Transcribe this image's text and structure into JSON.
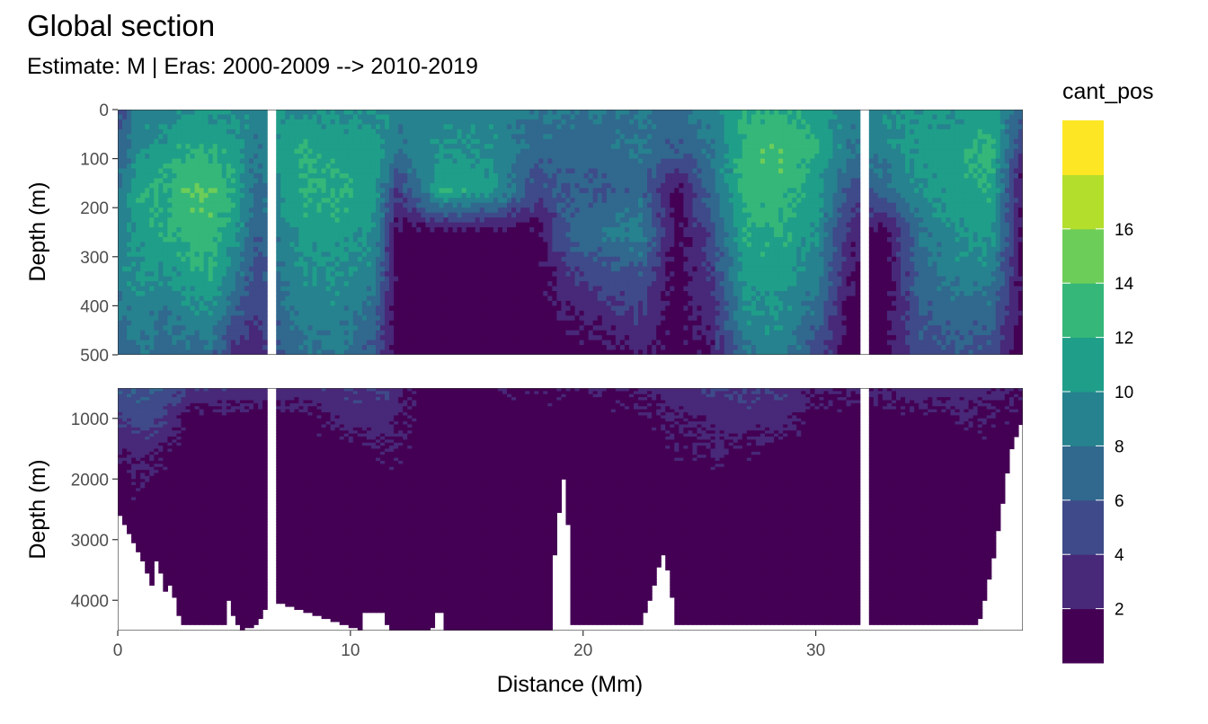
{
  "chart_data": {
    "type": "heatmap",
    "title": "Global section",
    "subtitle": "Estimate: M  | Eras: 2000-2009 --> 2010-2019",
    "xlabel": "Distance (Mm)",
    "ylabel": "Depth (m)",
    "legend_title": "cant_pos",
    "legend_placement": "right",
    "x_ticks": [
      "0",
      "10",
      "20",
      "30"
    ],
    "xlim": [
      0,
      38.9
    ],
    "x_gaps": [
      6.6,
      32.1
    ],
    "panels": [
      {
        "name": "upper",
        "ylim": [
          0,
          500
        ],
        "y_ticks": [
          "0",
          "100",
          "200",
          "300",
          "400",
          "500"
        ]
      },
      {
        "name": "lower",
        "ylim": [
          500,
          4500
        ],
        "y_ticks": [
          "1000",
          "2000",
          "3000",
          "4000"
        ]
      }
    ],
    "color_levels": [
      {
        "range": "0-2",
        "color": "#440154"
      },
      {
        "range": "2-4",
        "color": "#482878"
      },
      {
        "range": "4-6",
        "color": "#3E4A89"
      },
      {
        "range": "6-8",
        "color": "#31688E"
      },
      {
        "range": "8-10",
        "color": "#26828E"
      },
      {
        "range": "10-12",
        "color": "#1F9E89"
      },
      {
        "range": "12-14",
        "color": "#35B779"
      },
      {
        "range": "14-16",
        "color": "#6DCD59"
      },
      {
        "range": "16-18",
        "color": "#B4DE2C"
      },
      {
        "range": "18-20",
        "color": "#FDE725"
      }
    ],
    "legend_labels": [
      "2",
      "4",
      "6",
      "8",
      "10",
      "12",
      "14",
      "16"
    ],
    "upper_profiles": [
      {
        "x": 0.0,
        "d": [
          5,
          6,
          8,
          9,
          9,
          8,
          6
        ]
      },
      {
        "x": 1.0,
        "d": [
          9,
          10,
          12,
          11,
          10,
          9,
          8
        ]
      },
      {
        "x": 2.0,
        "d": [
          9,
          11,
          12,
          12,
          10,
          8,
          7
        ]
      },
      {
        "x": 3.0,
        "d": [
          10,
          12,
          14,
          13,
          11,
          9,
          7
        ]
      },
      {
        "x": 4.0,
        "d": [
          10,
          12,
          14,
          13,
          12,
          10,
          7
        ]
      },
      {
        "x": 5.0,
        "d": [
          10,
          11,
          12,
          11,
          9,
          6,
          3
        ]
      },
      {
        "x": 6.0,
        "d": [
          9,
          8,
          7,
          6,
          5,
          4,
          2
        ]
      },
      {
        "x": 7.0,
        "d": [
          10,
          11,
          10,
          9,
          8,
          7,
          6
        ]
      },
      {
        "x": 8.0,
        "d": [
          10,
          12,
          12,
          11,
          10,
          9,
          8
        ]
      },
      {
        "x": 9.5,
        "d": [
          10,
          11,
          12,
          11,
          10,
          9,
          8
        ]
      },
      {
        "x": 11.0,
        "d": [
          10,
          11,
          11,
          10,
          9,
          7,
          6
        ]
      },
      {
        "x": 12.0,
        "d": [
          9,
          8,
          4,
          1,
          1,
          1,
          1
        ]
      },
      {
        "x": 14.0,
        "d": [
          9,
          10,
          12,
          1,
          1,
          1,
          1
        ]
      },
      {
        "x": 16.0,
        "d": [
          9,
          10,
          11,
          1,
          1,
          1,
          1
        ]
      },
      {
        "x": 18.0,
        "d": [
          8,
          7,
          5,
          1,
          1,
          1,
          1
        ]
      },
      {
        "x": 19.5,
        "d": [
          8,
          7,
          6,
          7,
          4,
          2,
          1
        ]
      },
      {
        "x": 21.0,
        "d": [
          8,
          7,
          6,
          8,
          5,
          3,
          1
        ]
      },
      {
        "x": 22.5,
        "d": [
          8,
          8,
          7,
          9,
          6,
          4,
          2
        ]
      },
      {
        "x": 24.0,
        "d": [
          7,
          6,
          1,
          1,
          1,
          1,
          1
        ]
      },
      {
        "x": 25.5,
        "d": [
          9,
          8,
          7,
          5,
          4,
          3,
          2
        ]
      },
      {
        "x": 27.0,
        "d": [
          12,
          13,
          13,
          12,
          11,
          10,
          8
        ]
      },
      {
        "x": 28.5,
        "d": [
          12,
          14,
          13,
          12,
          11,
          10,
          9
        ]
      },
      {
        "x": 30.0,
        "d": [
          11,
          12,
          11,
          10,
          9,
          7,
          5
        ]
      },
      {
        "x": 31.5,
        "d": [
          9,
          8,
          5,
          3,
          2,
          1,
          1
        ]
      },
      {
        "x": 33.0,
        "d": [
          10,
          9,
          7,
          1,
          1,
          1,
          1
        ]
      },
      {
        "x": 34.5,
        "d": [
          10,
          11,
          10,
          8,
          7,
          6,
          5
        ]
      },
      {
        "x": 36.0,
        "d": [
          10,
          11,
          11,
          10,
          9,
          7,
          6
        ]
      },
      {
        "x": 37.5,
        "d": [
          11,
          13,
          12,
          11,
          9,
          7,
          5
        ]
      },
      {
        "x": 38.9,
        "d": [
          7,
          3,
          1,
          1,
          1,
          1,
          1
        ]
      }
    ],
    "lower_profiles": [
      {
        "x": 0.0,
        "d": [
          6,
          4,
          2,
          1,
          1,
          1,
          1,
          1,
          1
        ]
      },
      {
        "x": 1.0,
        "d": [
          6,
          5,
          3,
          2,
          1,
          1,
          1,
          1,
          1
        ]
      },
      {
        "x": 2.0,
        "d": [
          6,
          4,
          2,
          1,
          1,
          1,
          1,
          1,
          1
        ]
      },
      {
        "x": 3.0,
        "d": [
          4,
          1,
          1,
          1,
          1,
          1,
          1,
          1,
          1
        ]
      },
      {
        "x": 8.0,
        "d": [
          3,
          1,
          1,
          1,
          1,
          1,
          1,
          1,
          1
        ]
      },
      {
        "x": 10.0,
        "d": [
          4,
          3,
          1,
          1,
          1,
          1,
          1,
          1,
          1
        ]
      },
      {
        "x": 11.5,
        "d": [
          4,
          3,
          2,
          1,
          1,
          1,
          1,
          1,
          1
        ]
      },
      {
        "x": 13.0,
        "d": [
          1,
          1,
          1,
          1,
          1,
          1,
          1,
          1,
          1
        ]
      },
      {
        "x": 22.0,
        "d": [
          2,
          1,
          1,
          1,
          1,
          1,
          1,
          1,
          1
        ]
      },
      {
        "x": 26.0,
        "d": [
          4,
          3,
          2,
          1,
          1,
          1,
          1,
          1,
          1
        ]
      },
      {
        "x": 28.5,
        "d": [
          4,
          3,
          1,
          1,
          1,
          1,
          1,
          1,
          1
        ]
      },
      {
        "x": 30.0,
        "d": [
          2,
          1,
          1,
          1,
          1,
          1,
          1,
          1,
          1
        ]
      },
      {
        "x": 35.0,
        "d": [
          3,
          1,
          1,
          1,
          1,
          1,
          1,
          1,
          1
        ]
      },
      {
        "x": 36.5,
        "d": [
          3,
          2,
          1,
          1,
          1,
          1,
          1,
          1,
          1
        ]
      },
      {
        "x": 38.9,
        "d": [
          2,
          1,
          1,
          1,
          1,
          1,
          1,
          1,
          1
        ]
      }
    ],
    "seafloor_depth": [
      {
        "x": 0.0,
        "depth": 2500
      },
      {
        "x": 0.5,
        "depth": 2900
      },
      {
        "x": 1.0,
        "depth": 3300
      },
      {
        "x": 1.5,
        "depth": 3800
      },
      {
        "x": 1.7,
        "depth": 3200
      },
      {
        "x": 2.0,
        "depth": 3900
      },
      {
        "x": 2.3,
        "depth": 3700
      },
      {
        "x": 2.7,
        "depth": 4400
      },
      {
        "x": 4.6,
        "depth": 4400
      },
      {
        "x": 4.7,
        "depth": 3900
      },
      {
        "x": 5.0,
        "depth": 4300
      },
      {
        "x": 5.3,
        "depth": 4500
      },
      {
        "x": 6.0,
        "depth": 4400
      },
      {
        "x": 6.5,
        "depth": 4000
      },
      {
        "x": 10.5,
        "depth": 4500
      },
      {
        "x": 10.6,
        "depth": 4200
      },
      {
        "x": 11.5,
        "depth": 4200
      },
      {
        "x": 11.6,
        "depth": 4500
      },
      {
        "x": 13.5,
        "depth": 4500
      },
      {
        "x": 13.6,
        "depth": 4200
      },
      {
        "x": 13.9,
        "depth": 4200
      },
      {
        "x": 14.0,
        "depth": 4500
      },
      {
        "x": 18.6,
        "depth": 4500
      },
      {
        "x": 18.7,
        "depth": 3500
      },
      {
        "x": 19.0,
        "depth": 2400
      },
      {
        "x": 19.2,
        "depth": 1900
      },
      {
        "x": 19.4,
        "depth": 3000
      },
      {
        "x": 19.5,
        "depth": 4400
      },
      {
        "x": 22.5,
        "depth": 4400
      },
      {
        "x": 23.0,
        "depth": 3800
      },
      {
        "x": 23.4,
        "depth": 3200
      },
      {
        "x": 23.7,
        "depth": 3600
      },
      {
        "x": 24.0,
        "depth": 4400
      },
      {
        "x": 37.0,
        "depth": 4400
      },
      {
        "x": 37.7,
        "depth": 3200
      },
      {
        "x": 38.1,
        "depth": 2200
      },
      {
        "x": 38.4,
        "depth": 1500
      },
      {
        "x": 38.9,
        "depth": 1000
      }
    ]
  }
}
